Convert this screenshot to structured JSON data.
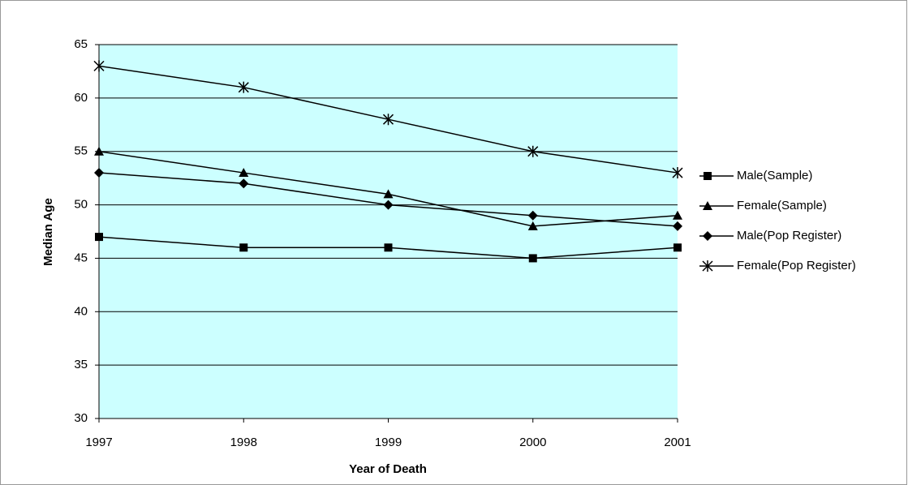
{
  "chart_data": {
    "type": "line",
    "x_label": "Year of Death",
    "y_label": "Median Age",
    "x": [
      1997,
      1998,
      1999,
      2000,
      2001
    ],
    "xlim": [
      1997,
      2001
    ],
    "xticks": [
      1997,
      1998,
      1999,
      2000,
      2001
    ],
    "ylim": [
      30,
      65
    ],
    "yticks": [
      30,
      35,
      40,
      45,
      50,
      55,
      60,
      65
    ],
    "grid": true,
    "legend": "right",
    "background": "#ccffff",
    "series": [
      {
        "name": "Male(Sample)",
        "color": "#000000",
        "marker": "square",
        "values": [
          47,
          46,
          46,
          45,
          46
        ]
      },
      {
        "name": "Female(Sample)",
        "color": "#000000",
        "marker": "triangle",
        "values": [
          55,
          53,
          51,
          48,
          49
        ]
      },
      {
        "name": "Male(Pop Register)",
        "color": "#000000",
        "marker": "diamond",
        "values": [
          53,
          52,
          50,
          49,
          48
        ]
      },
      {
        "name": "Female(Pop Register)",
        "color": "#000000",
        "marker": "star",
        "values": [
          63,
          61,
          58,
          55,
          53
        ]
      }
    ]
  }
}
